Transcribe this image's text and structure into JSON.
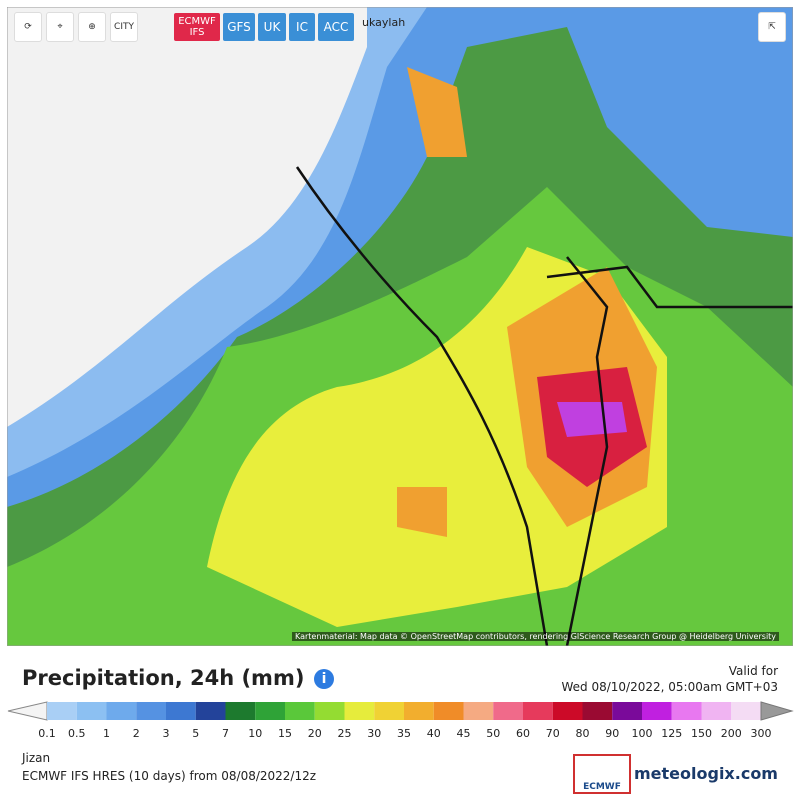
{
  "toolbar": {
    "city": "CITY",
    "models": [
      "ECMWF IFS",
      "GFS",
      "UK",
      "IC",
      "ACC"
    ]
  },
  "map": {
    "place": "ukaylah",
    "attribution": "Kartenmaterial: Map data © OpenStreetMap contributors, rendering GIScience Research Group @ Heidelberg University"
  },
  "header": {
    "title": "Precipitation, 24h (mm)",
    "valid_label": "Valid for",
    "valid_time": "Wed 08/10/2022, 05:00am GMT+03"
  },
  "legend": {
    "labels": [
      0.1,
      0.5,
      1,
      2,
      3,
      5,
      7,
      10,
      15,
      20,
      25,
      30,
      35,
      40,
      45,
      50,
      60,
      70,
      80,
      90,
      100,
      125,
      150,
      200,
      300
    ],
    "colors": [
      "#a9cff5",
      "#8cc0f2",
      "#6eaaec",
      "#5592e2",
      "#3d78d2",
      "#23439a",
      "#1d7a2e",
      "#2fa337",
      "#5ac83a",
      "#94dc32",
      "#e6ec3c",
      "#f0d234",
      "#f2ae2e",
      "#f08c28",
      "#f5aa82",
      "#f06a8a",
      "#e63a5c",
      "#cc0a28",
      "#9a0a32",
      "#7a0a9a",
      "#c020e0",
      "#e878f0",
      "#f0b4f2",
      "#f4dcf4"
    ]
  },
  "footer": {
    "location": "Jizan",
    "model": "ECMWF IFS HRES (10 days) from 08/08/2022/12z",
    "logo_ecmwf": "ECMWF",
    "brand": "meteologix.com"
  }
}
